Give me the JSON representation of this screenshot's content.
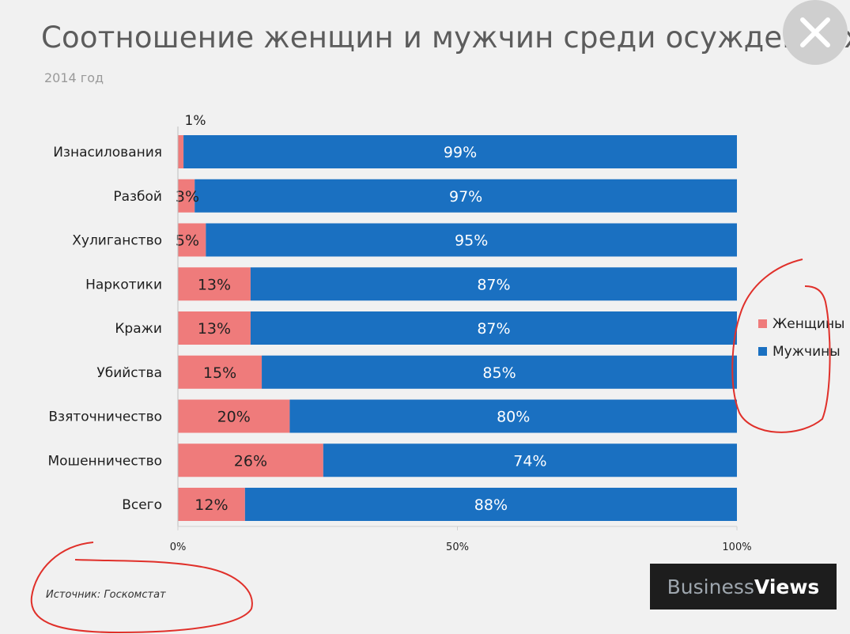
{
  "chart_data": {
    "type": "bar",
    "stacked": true,
    "orientation": "horizontal",
    "percent_stacked": true,
    "title": "Соотношение женщин и мужчин среди осужденных",
    "subtitle": "2014 год",
    "categories": [
      "Изнасилования",
      "Разбой",
      "Хулиганство",
      "Наркотики",
      "Кражи",
      "Убийства",
      "Взяточничество",
      "Мошенничество",
      "Всего"
    ],
    "series": [
      {
        "name": "Женщины",
        "color": "#ef7b7b",
        "values": [
          1,
          3,
          5,
          13,
          13,
          15,
          20,
          26,
          12
        ],
        "labels": [
          "1%",
          "3%",
          "5%",
          "13%",
          "13%",
          "15%",
          "20%",
          "26%",
          "12%"
        ]
      },
      {
        "name": "Мужчины",
        "color": "#1a70c1",
        "values": [
          99,
          97,
          95,
          87,
          87,
          85,
          80,
          74,
          88
        ],
        "labels": [
          "99%",
          "97%",
          "95%",
          "87%",
          "87%",
          "85%",
          "80%",
          "74%",
          "88%"
        ]
      }
    ],
    "xlim": [
      0,
      100
    ],
    "x_ticks": [
      "0%",
      "50%",
      "100%"
    ],
    "legend_position": "right",
    "grid": false
  },
  "source_text": "Источник: Госкомстат",
  "logo": {
    "part1": "Business",
    "part2": "Views"
  },
  "close_icon": "close-icon",
  "annotation_color": "#e0302a"
}
